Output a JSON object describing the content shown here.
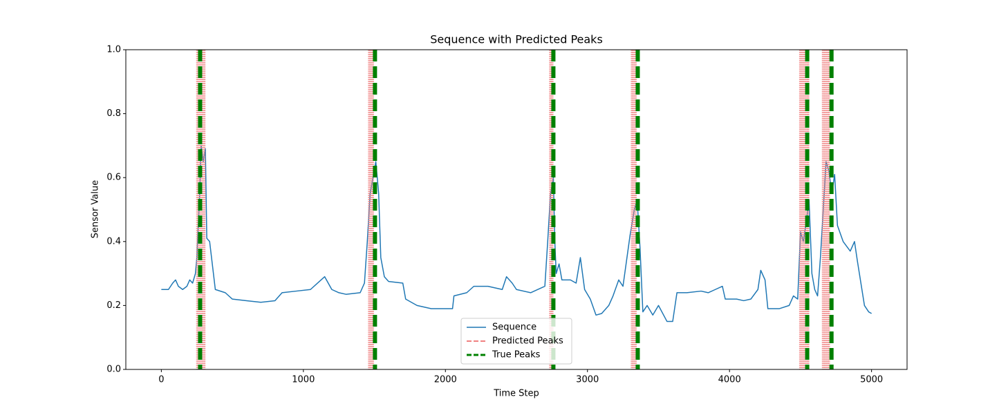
{
  "chart_data": {
    "type": "line",
    "title": "Sequence with Predicted Peaks",
    "x_label": "Time Step",
    "y_label": "Sensor Value",
    "xlim": [
      -250,
      5250
    ],
    "xticks": [
      0,
      1000,
      2000,
      3000,
      4000,
      5000
    ],
    "ylim": [
      0,
      1
    ],
    "yticks": [
      {
        "value": 0,
        "label": "0.0"
      },
      0.2,
      0.4,
      0.6,
      0.8,
      {
        "value": 1,
        "label": "1.0"
      }
    ],
    "legend": "lower center",
    "series": [
      {
        "name": "Sequence",
        "color": "#1f77b4",
        "style": "line",
        "x": [
          0,
          50,
          80,
          100,
          120,
          150,
          180,
          200,
          220,
          240,
          250,
          260,
          270,
          280,
          295,
          310,
          320,
          340,
          380,
          450,
          500,
          600,
          700,
          800,
          850,
          950,
          1050,
          1100,
          1150,
          1200,
          1250,
          1300,
          1400,
          1430,
          1450,
          1470,
          1490,
          1510,
          1530,
          1545,
          1570,
          1600,
          1700,
          1720,
          1800,
          1900,
          2000,
          2050,
          2060,
          2150,
          2200,
          2300,
          2400,
          2430,
          2470,
          2500,
          2600,
          2700,
          2720,
          2740,
          2760,
          2770,
          2780,
          2800,
          2820,
          2880,
          2920,
          2950,
          2980,
          3020,
          3060,
          3100,
          3150,
          3180,
          3220,
          3250,
          3300,
          3330,
          3350,
          3370,
          3390,
          3420,
          3460,
          3500,
          3560,
          3600,
          3630,
          3700,
          3800,
          3850,
          3900,
          3950,
          3970,
          4050,
          4100,
          4150,
          4200,
          4220,
          4250,
          4270,
          4350,
          4420,
          4450,
          4480,
          4500,
          4520,
          4540,
          4560,
          4580,
          4600,
          4620,
          4640,
          4660,
          4680,
          4700,
          4720,
          4740,
          4760,
          4800,
          4850,
          4880,
          4900,
          4950,
          4980,
          5000
        ],
        "values": [
          0.25,
          0.25,
          0.27,
          0.28,
          0.26,
          0.25,
          0.26,
          0.28,
          0.27,
          0.3,
          0.35,
          0.45,
          0.55,
          0.7,
          0.65,
          0.69,
          0.41,
          0.4,
          0.25,
          0.24,
          0.22,
          0.215,
          0.21,
          0.215,
          0.24,
          0.245,
          0.25,
          0.27,
          0.29,
          0.25,
          0.24,
          0.235,
          0.24,
          0.27,
          0.4,
          0.55,
          0.6,
          0.65,
          0.55,
          0.35,
          0.29,
          0.275,
          0.27,
          0.22,
          0.2,
          0.19,
          0.19,
          0.19,
          0.23,
          0.24,
          0.26,
          0.26,
          0.25,
          0.29,
          0.27,
          0.25,
          0.24,
          0.26,
          0.4,
          0.55,
          0.6,
          0.4,
          0.3,
          0.33,
          0.28,
          0.28,
          0.27,
          0.35,
          0.25,
          0.22,
          0.17,
          0.175,
          0.2,
          0.23,
          0.28,
          0.26,
          0.42,
          0.5,
          0.53,
          0.38,
          0.18,
          0.2,
          0.17,
          0.2,
          0.15,
          0.15,
          0.24,
          0.24,
          0.245,
          0.24,
          0.25,
          0.26,
          0.22,
          0.22,
          0.215,
          0.22,
          0.25,
          0.31,
          0.28,
          0.19,
          0.19,
          0.2,
          0.23,
          0.22,
          0.43,
          0.4,
          0.46,
          0.53,
          0.3,
          0.25,
          0.23,
          0.35,
          0.5,
          0.65,
          0.62,
          0.55,
          0.61,
          0.45,
          0.4,
          0.37,
          0.4,
          0.34,
          0.2,
          0.18,
          0.175
        ]
      },
      {
        "name": "Predicted Peaks",
        "color": "#f08080",
        "style": "vline",
        "x": [
          250,
          258,
          266,
          274,
          282,
          290,
          298,
          306,
          1460,
          1468,
          1476,
          1484,
          1492,
          2735,
          2742,
          2749,
          2756,
          3310,
          3318,
          3326,
          3334,
          3342,
          4495,
          4503,
          4511,
          4519,
          4527,
          4535,
          4543,
          4551,
          4557,
          4655,
          4663,
          4671,
          4679,
          4687,
          4695,
          4703
        ]
      },
      {
        "name": "True Peaks",
        "color": "#008000",
        "style": "vline-bold",
        "x": [
          273,
          1504,
          2760,
          3354,
          4547,
          4718
        ]
      }
    ]
  }
}
